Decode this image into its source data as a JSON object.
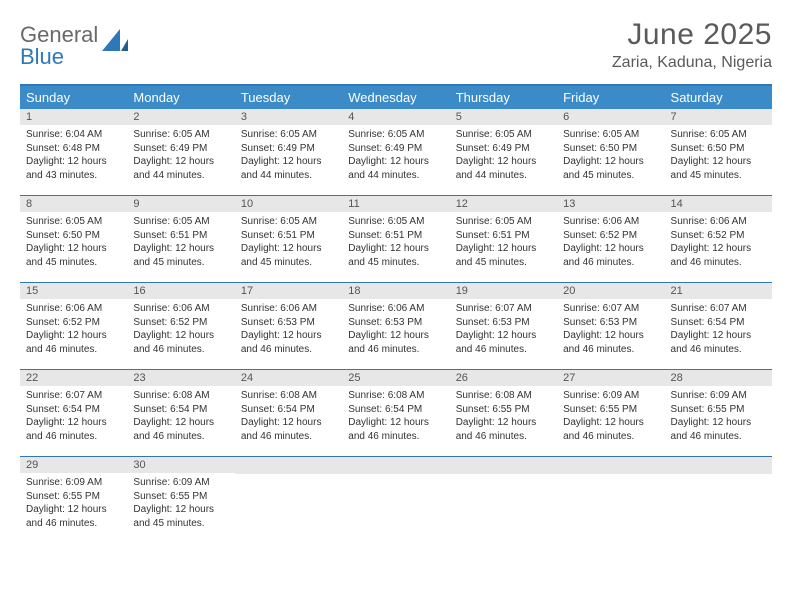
{
  "brand": {
    "name1": "General",
    "name2": "Blue"
  },
  "title": "June 2025",
  "location": "Zaria, Kaduna, Nigeria",
  "colors": {
    "header_bg": "#3b8bc9",
    "rule": "#2f78b7",
    "daynum_bg": "#e7e7e7",
    "text": "#333333",
    "title": "#5a5a5a"
  },
  "typography": {
    "title_fontsize": 30,
    "location_fontsize": 16,
    "dayheader_fontsize": 13,
    "cell_fontsize": 10
  },
  "layout": {
    "columns": 7,
    "rows": 5,
    "cell_min_height": 86
  },
  "day_names": [
    "Sunday",
    "Monday",
    "Tuesday",
    "Wednesday",
    "Thursday",
    "Friday",
    "Saturday"
  ],
  "weeks": [
    [
      {
        "n": "1",
        "sr": "Sunrise: 6:04 AM",
        "ss": "Sunset: 6:48 PM",
        "d1": "Daylight: 12 hours",
        "d2": "and 43 minutes."
      },
      {
        "n": "2",
        "sr": "Sunrise: 6:05 AM",
        "ss": "Sunset: 6:49 PM",
        "d1": "Daylight: 12 hours",
        "d2": "and 44 minutes."
      },
      {
        "n": "3",
        "sr": "Sunrise: 6:05 AM",
        "ss": "Sunset: 6:49 PM",
        "d1": "Daylight: 12 hours",
        "d2": "and 44 minutes."
      },
      {
        "n": "4",
        "sr": "Sunrise: 6:05 AM",
        "ss": "Sunset: 6:49 PM",
        "d1": "Daylight: 12 hours",
        "d2": "and 44 minutes."
      },
      {
        "n": "5",
        "sr": "Sunrise: 6:05 AM",
        "ss": "Sunset: 6:49 PM",
        "d1": "Daylight: 12 hours",
        "d2": "and 44 minutes."
      },
      {
        "n": "6",
        "sr": "Sunrise: 6:05 AM",
        "ss": "Sunset: 6:50 PM",
        "d1": "Daylight: 12 hours",
        "d2": "and 45 minutes."
      },
      {
        "n": "7",
        "sr": "Sunrise: 6:05 AM",
        "ss": "Sunset: 6:50 PM",
        "d1": "Daylight: 12 hours",
        "d2": "and 45 minutes."
      }
    ],
    [
      {
        "n": "8",
        "sr": "Sunrise: 6:05 AM",
        "ss": "Sunset: 6:50 PM",
        "d1": "Daylight: 12 hours",
        "d2": "and 45 minutes."
      },
      {
        "n": "9",
        "sr": "Sunrise: 6:05 AM",
        "ss": "Sunset: 6:51 PM",
        "d1": "Daylight: 12 hours",
        "d2": "and 45 minutes."
      },
      {
        "n": "10",
        "sr": "Sunrise: 6:05 AM",
        "ss": "Sunset: 6:51 PM",
        "d1": "Daylight: 12 hours",
        "d2": "and 45 minutes."
      },
      {
        "n": "11",
        "sr": "Sunrise: 6:05 AM",
        "ss": "Sunset: 6:51 PM",
        "d1": "Daylight: 12 hours",
        "d2": "and 45 minutes."
      },
      {
        "n": "12",
        "sr": "Sunrise: 6:05 AM",
        "ss": "Sunset: 6:51 PM",
        "d1": "Daylight: 12 hours",
        "d2": "and 45 minutes."
      },
      {
        "n": "13",
        "sr": "Sunrise: 6:06 AM",
        "ss": "Sunset: 6:52 PM",
        "d1": "Daylight: 12 hours",
        "d2": "and 46 minutes."
      },
      {
        "n": "14",
        "sr": "Sunrise: 6:06 AM",
        "ss": "Sunset: 6:52 PM",
        "d1": "Daylight: 12 hours",
        "d2": "and 46 minutes."
      }
    ],
    [
      {
        "n": "15",
        "sr": "Sunrise: 6:06 AM",
        "ss": "Sunset: 6:52 PM",
        "d1": "Daylight: 12 hours",
        "d2": "and 46 minutes."
      },
      {
        "n": "16",
        "sr": "Sunrise: 6:06 AM",
        "ss": "Sunset: 6:52 PM",
        "d1": "Daylight: 12 hours",
        "d2": "and 46 minutes."
      },
      {
        "n": "17",
        "sr": "Sunrise: 6:06 AM",
        "ss": "Sunset: 6:53 PM",
        "d1": "Daylight: 12 hours",
        "d2": "and 46 minutes."
      },
      {
        "n": "18",
        "sr": "Sunrise: 6:06 AM",
        "ss": "Sunset: 6:53 PM",
        "d1": "Daylight: 12 hours",
        "d2": "and 46 minutes."
      },
      {
        "n": "19",
        "sr": "Sunrise: 6:07 AM",
        "ss": "Sunset: 6:53 PM",
        "d1": "Daylight: 12 hours",
        "d2": "and 46 minutes."
      },
      {
        "n": "20",
        "sr": "Sunrise: 6:07 AM",
        "ss": "Sunset: 6:53 PM",
        "d1": "Daylight: 12 hours",
        "d2": "and 46 minutes."
      },
      {
        "n": "21",
        "sr": "Sunrise: 6:07 AM",
        "ss": "Sunset: 6:54 PM",
        "d1": "Daylight: 12 hours",
        "d2": "and 46 minutes."
      }
    ],
    [
      {
        "n": "22",
        "sr": "Sunrise: 6:07 AM",
        "ss": "Sunset: 6:54 PM",
        "d1": "Daylight: 12 hours",
        "d2": "and 46 minutes."
      },
      {
        "n": "23",
        "sr": "Sunrise: 6:08 AM",
        "ss": "Sunset: 6:54 PM",
        "d1": "Daylight: 12 hours",
        "d2": "and 46 minutes."
      },
      {
        "n": "24",
        "sr": "Sunrise: 6:08 AM",
        "ss": "Sunset: 6:54 PM",
        "d1": "Daylight: 12 hours",
        "d2": "and 46 minutes."
      },
      {
        "n": "25",
        "sr": "Sunrise: 6:08 AM",
        "ss": "Sunset: 6:54 PM",
        "d1": "Daylight: 12 hours",
        "d2": "and 46 minutes."
      },
      {
        "n": "26",
        "sr": "Sunrise: 6:08 AM",
        "ss": "Sunset: 6:55 PM",
        "d1": "Daylight: 12 hours",
        "d2": "and 46 minutes."
      },
      {
        "n": "27",
        "sr": "Sunrise: 6:09 AM",
        "ss": "Sunset: 6:55 PM",
        "d1": "Daylight: 12 hours",
        "d2": "and 46 minutes."
      },
      {
        "n": "28",
        "sr": "Sunrise: 6:09 AM",
        "ss": "Sunset: 6:55 PM",
        "d1": "Daylight: 12 hours",
        "d2": "and 46 minutes."
      }
    ],
    [
      {
        "n": "29",
        "sr": "Sunrise: 6:09 AM",
        "ss": "Sunset: 6:55 PM",
        "d1": "Daylight: 12 hours",
        "d2": "and 46 minutes."
      },
      {
        "n": "30",
        "sr": "Sunrise: 6:09 AM",
        "ss": "Sunset: 6:55 PM",
        "d1": "Daylight: 12 hours",
        "d2": "and 45 minutes."
      },
      {
        "n": "",
        "sr": "",
        "ss": "",
        "d1": "",
        "d2": ""
      },
      {
        "n": "",
        "sr": "",
        "ss": "",
        "d1": "",
        "d2": ""
      },
      {
        "n": "",
        "sr": "",
        "ss": "",
        "d1": "",
        "d2": ""
      },
      {
        "n": "",
        "sr": "",
        "ss": "",
        "d1": "",
        "d2": ""
      },
      {
        "n": "",
        "sr": "",
        "ss": "",
        "d1": "",
        "d2": ""
      }
    ]
  ]
}
